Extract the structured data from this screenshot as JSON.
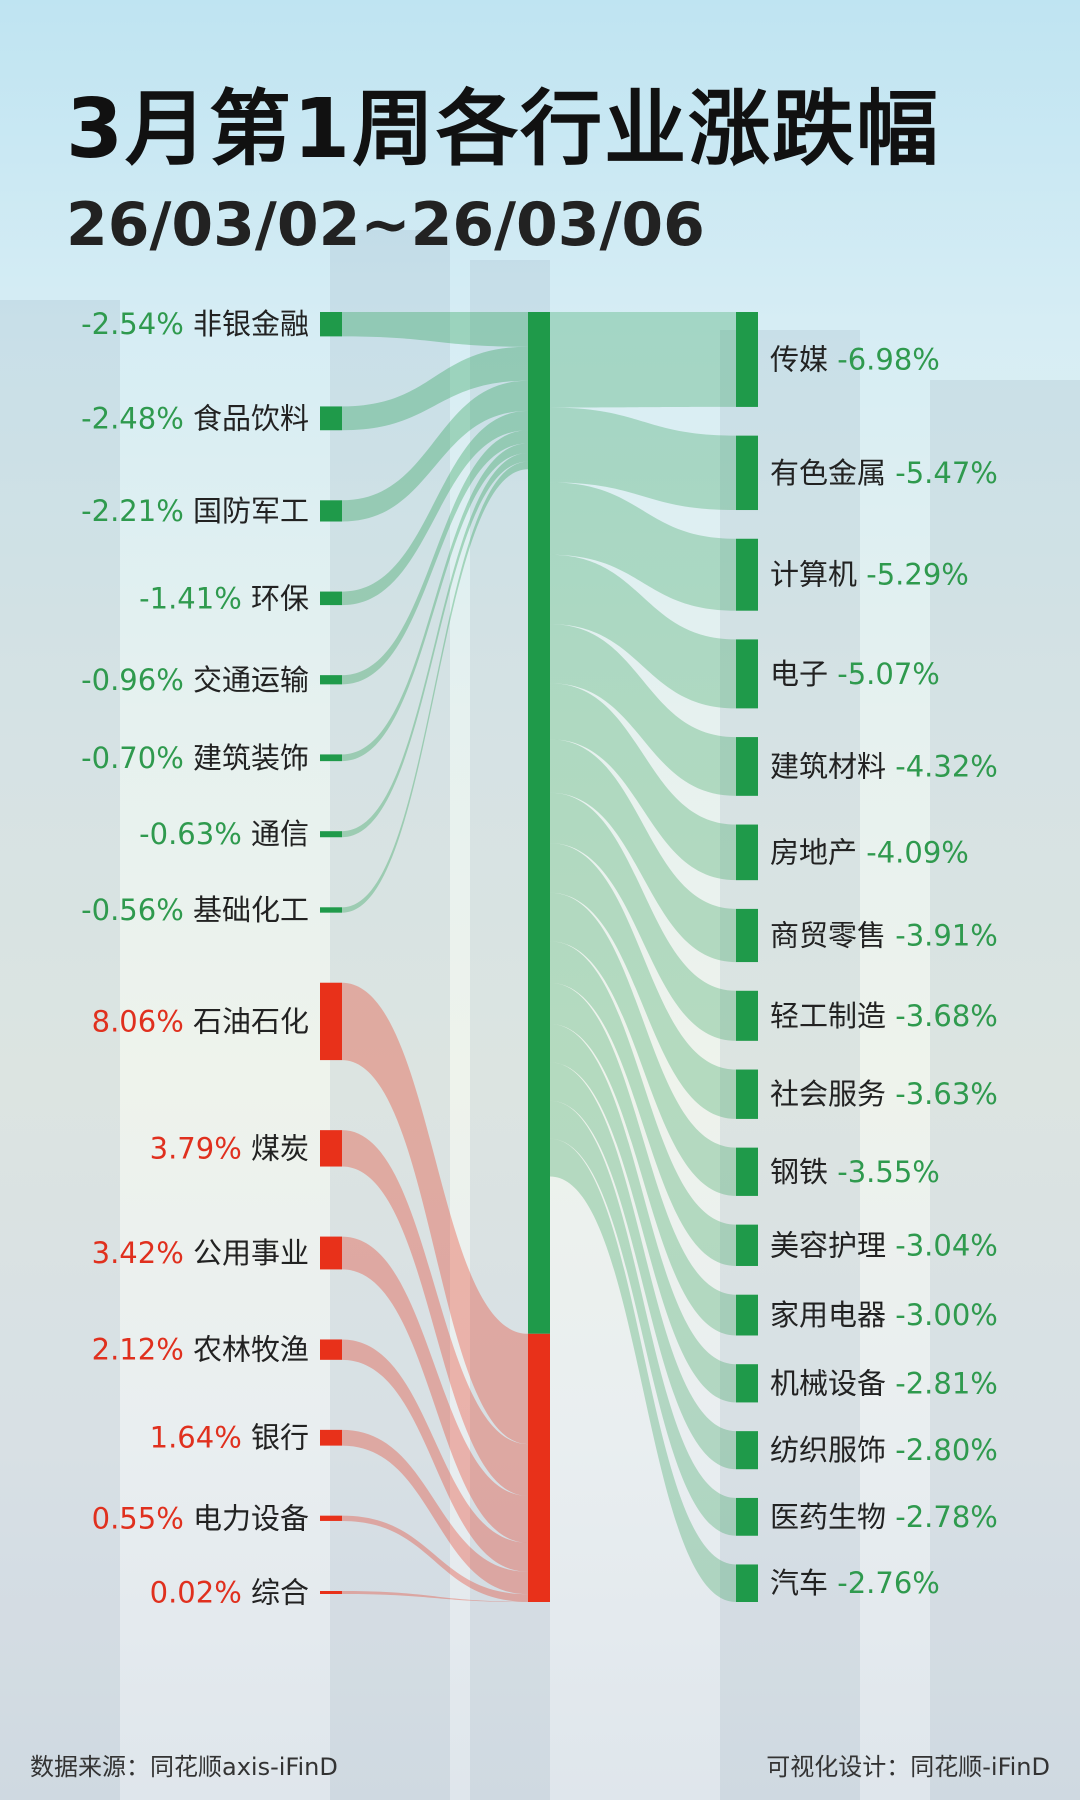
{
  "title": "3月第1周各行业涨跌幅",
  "subtitle": "26/03/02~26/03/06",
  "footer": {
    "source": "数据来源：同花顺axis-iFinD",
    "design": "可视化设计：同花顺-iFinD"
  },
  "colors": {
    "down": "#1f9a4a",
    "up": "#e8311a",
    "down_text": "#2f9a4e",
    "up_text": "#e0301e"
  },
  "chart_data": {
    "type": "sankey",
    "title": "3月第1周各行业涨跌幅",
    "unit": "%",
    "left": [
      {
        "name": "非银金融",
        "label": "-2.54%",
        "value": -2.54
      },
      {
        "name": "食品饮料",
        "label": "-2.48%",
        "value": -2.48
      },
      {
        "name": "国防军工",
        "label": "-2.21%",
        "value": -2.21
      },
      {
        "name": "环保",
        "label": "-1.41%",
        "value": -1.41
      },
      {
        "name": "交通运输",
        "label": "-0.96%",
        "value": -0.96
      },
      {
        "name": "建筑装饰",
        "label": "-0.70%",
        "value": -0.7
      },
      {
        "name": "通信",
        "label": "-0.63%",
        "value": -0.63
      },
      {
        "name": "基础化工",
        "label": "-0.56%",
        "value": -0.56
      },
      {
        "name": "石油石化",
        "label": "8.06%",
        "value": 8.06
      },
      {
        "name": "煤炭",
        "label": "3.79%",
        "value": 3.79
      },
      {
        "name": "公用事业",
        "label": "3.42%",
        "value": 3.42
      },
      {
        "name": "农林牧渔",
        "label": "2.12%",
        "value": 2.12
      },
      {
        "name": "银行",
        "label": "1.64%",
        "value": 1.64
      },
      {
        "name": "电力设备",
        "label": "0.55%",
        "value": 0.55
      },
      {
        "name": "综合",
        "label": "0.02%",
        "value": 0.02
      }
    ],
    "right": [
      {
        "name": "传媒",
        "label": "-6.98%",
        "value": -6.98
      },
      {
        "name": "有色金属",
        "label": "-5.47%",
        "value": -5.47
      },
      {
        "name": "计算机",
        "label": "-5.29%",
        "value": -5.29
      },
      {
        "name": "电子",
        "label": "-5.07%",
        "value": -5.07
      },
      {
        "name": "建筑材料",
        "label": "-4.32%",
        "value": -4.32
      },
      {
        "name": "房地产",
        "label": "-4.09%",
        "value": -4.09
      },
      {
        "name": "商贸零售",
        "label": "-3.91%",
        "value": -3.91
      },
      {
        "name": "轻工制造",
        "label": "-3.68%",
        "value": -3.68
      },
      {
        "name": "社会服务",
        "label": "-3.63%",
        "value": -3.63
      },
      {
        "name": "钢铁",
        "label": "-3.55%",
        "value": -3.55
      },
      {
        "name": "美容护理",
        "label": "-3.04%",
        "value": -3.04
      },
      {
        "name": "家用电器",
        "label": "-3.00%",
        "value": -3.0
      },
      {
        "name": "机械设备",
        "label": "-2.81%",
        "value": -2.81
      },
      {
        "name": "纺织服饰",
        "label": "-2.80%",
        "value": -2.8
      },
      {
        "name": "医药生物",
        "label": "-2.78%",
        "value": -2.78
      },
      {
        "name": "汽车",
        "label": "-2.76%",
        "value": -2.76
      }
    ]
  }
}
